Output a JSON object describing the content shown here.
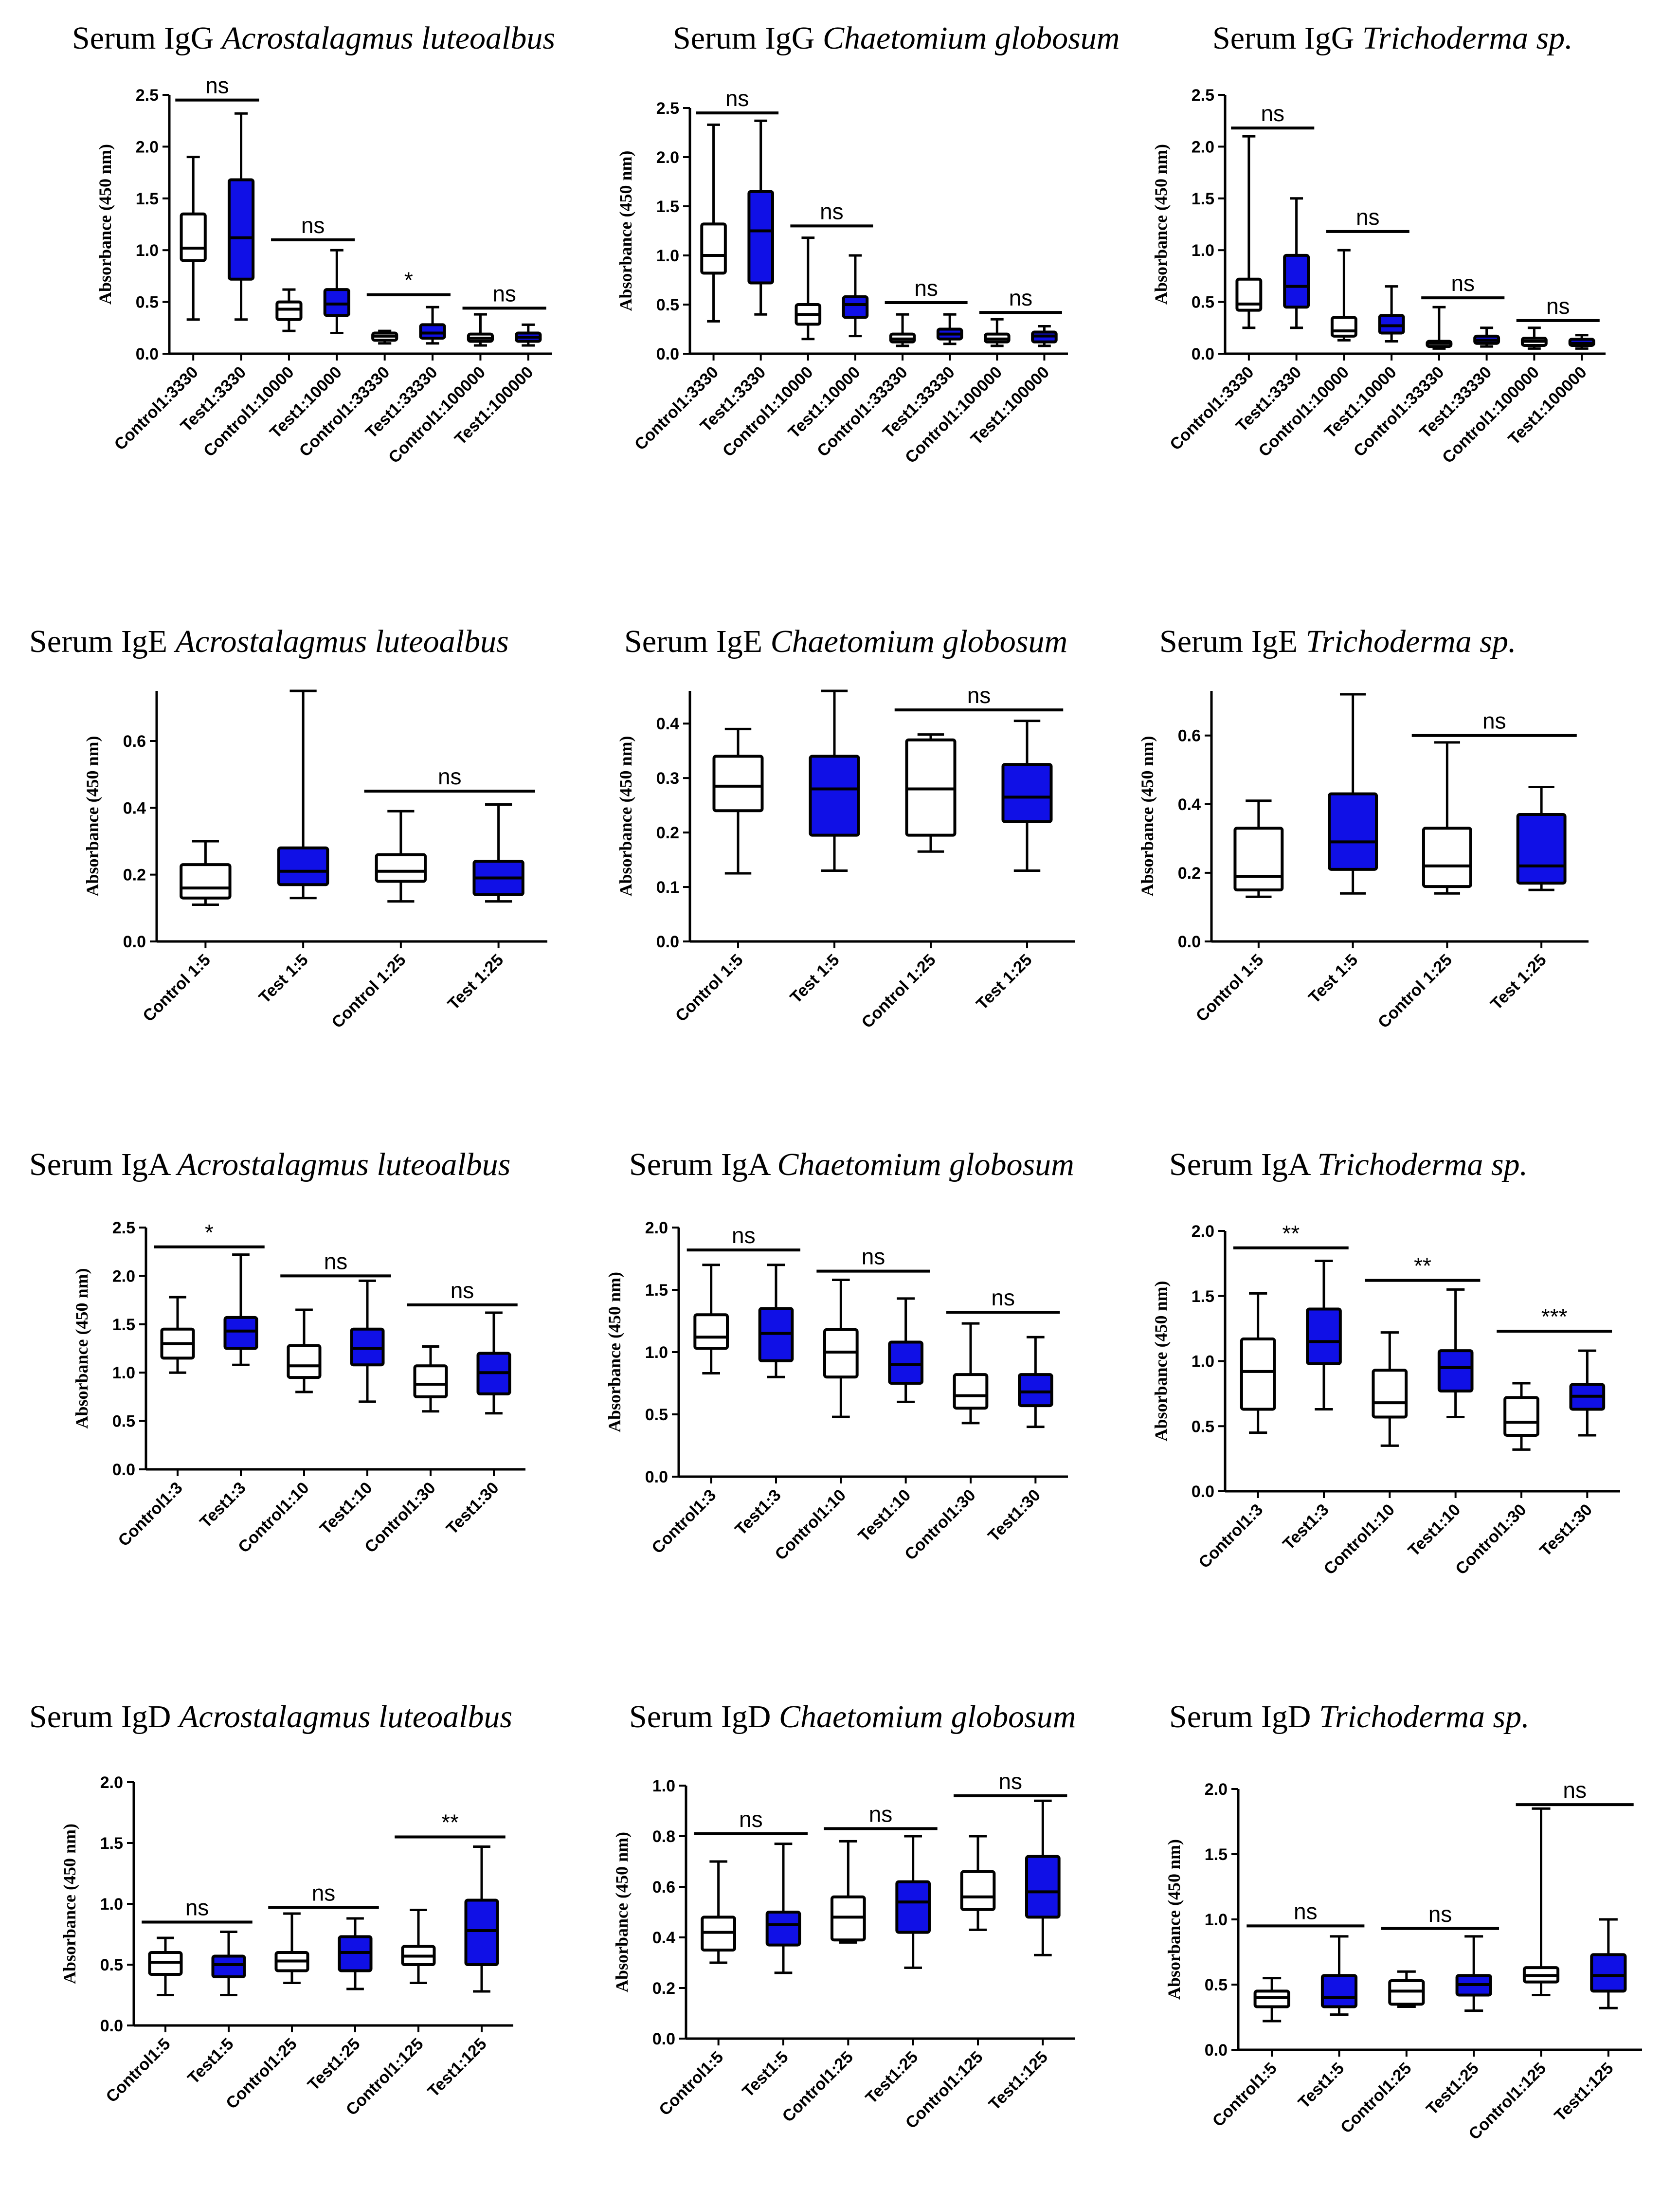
{
  "figure": {
    "test_color": "#1010e6",
    "control_color": "#ffffff",
    "line_color": "#000000"
  },
  "chart_data": [
    {
      "type": "box",
      "title_prefix": "Serum IgG",
      "title_species": "Acrostalagmus luteoalbus",
      "ylabel": "Absorbance (450 nm)",
      "ylim": [
        0,
        2.5
      ],
      "yticks": [
        "0.0",
        "0.5",
        "1.0",
        "1.5",
        "2.0",
        "2.5"
      ],
      "categories": [
        "Control1:3330",
        "Test1:3330",
        "Control1:10000",
        "Test1:10000",
        "Control1:33330",
        "Test1:33330",
        "Control1:100000",
        "Test1:100000"
      ],
      "groups": [
        "control",
        "test",
        "control",
        "test",
        "control",
        "test",
        "control",
        "test"
      ],
      "boxes": [
        [
          0.33,
          0.9,
          1.02,
          1.35,
          1.9
        ],
        [
          0.33,
          0.72,
          1.12,
          1.68,
          2.32
        ],
        [
          0.22,
          0.33,
          0.43,
          0.5,
          0.62
        ],
        [
          0.2,
          0.37,
          0.48,
          0.62,
          1.0
        ],
        [
          0.1,
          0.13,
          0.17,
          0.2,
          0.22
        ],
        [
          0.1,
          0.15,
          0.2,
          0.28,
          0.45
        ],
        [
          0.08,
          0.12,
          0.15,
          0.19,
          0.38
        ],
        [
          0.08,
          0.12,
          0.16,
          0.2,
          0.28
        ]
      ],
      "annotations": [
        {
          "label": "ns",
          "from": 0,
          "to": 1,
          "y": 2.45
        },
        {
          "label": "ns",
          "from": 2,
          "to": 3,
          "y": 1.1
        },
        {
          "label": "*",
          "from": 4,
          "to": 5,
          "y": 0.57
        },
        {
          "label": "ns",
          "from": 6,
          "to": 7,
          "y": 0.44
        }
      ]
    },
    {
      "type": "box",
      "title_prefix": "Serum IgG",
      "title_species": "Chaetomium globosum",
      "ylabel": "Absorbance (450 nm)",
      "ylim": [
        0,
        2.5
      ],
      "yticks": [
        "0.0",
        "0.5",
        "1.0",
        "1.5",
        "2.0",
        "2.5"
      ],
      "categories": [
        "Control1:3330",
        "Test1:3330",
        "Control1:10000",
        "Test1:10000",
        "Control1:33330",
        "Test1:33330",
        "Control1:100000",
        "Test1:100000"
      ],
      "groups": [
        "control",
        "test",
        "control",
        "test",
        "control",
        "test",
        "control",
        "test"
      ],
      "boxes": [
        [
          0.33,
          0.82,
          1.0,
          1.32,
          2.33
        ],
        [
          0.4,
          0.72,
          1.25,
          1.65,
          2.37
        ],
        [
          0.15,
          0.3,
          0.4,
          0.5,
          1.18
        ],
        [
          0.18,
          0.37,
          0.5,
          0.58,
          1.0
        ],
        [
          0.08,
          0.12,
          0.15,
          0.2,
          0.4
        ],
        [
          0.1,
          0.15,
          0.2,
          0.25,
          0.4
        ],
        [
          0.08,
          0.12,
          0.15,
          0.2,
          0.35
        ],
        [
          0.08,
          0.12,
          0.18,
          0.22,
          0.28
        ]
      ],
      "annotations": [
        {
          "label": "ns",
          "from": 0,
          "to": 1,
          "y": 2.45
        },
        {
          "label": "ns",
          "from": 2,
          "to": 3,
          "y": 1.3
        },
        {
          "label": "ns",
          "from": 4,
          "to": 5,
          "y": 0.52
        },
        {
          "label": "ns",
          "from": 6,
          "to": 7,
          "y": 0.42
        }
      ]
    },
    {
      "type": "box",
      "title_prefix": "Serum IgG",
      "title_species": "Trichoderma sp.",
      "ylabel": "Absorbance (450 nm)",
      "ylim": [
        0,
        2.5
      ],
      "yticks": [
        "0.0",
        "0.5",
        "1.0",
        "1.5",
        "2.0",
        "2.5"
      ],
      "categories": [
        "Control1:3330",
        "Test1:3330",
        "Control1:10000",
        "Test1:10000",
        "Control1:33330",
        "Test1:33330",
        "Control1:100000",
        "Test1:100000"
      ],
      "groups": [
        "control",
        "test",
        "control",
        "test",
        "control",
        "test",
        "control",
        "test"
      ],
      "boxes": [
        [
          0.25,
          0.42,
          0.48,
          0.72,
          2.1
        ],
        [
          0.25,
          0.45,
          0.65,
          0.95,
          1.5
        ],
        [
          0.13,
          0.17,
          0.22,
          0.35,
          1.0
        ],
        [
          0.12,
          0.2,
          0.27,
          0.37,
          0.65
        ],
        [
          0.05,
          0.07,
          0.1,
          0.12,
          0.45
        ],
        [
          0.07,
          0.1,
          0.13,
          0.17,
          0.25
        ],
        [
          0.05,
          0.08,
          0.12,
          0.15,
          0.25
        ],
        [
          0.05,
          0.08,
          0.1,
          0.14,
          0.18
        ]
      ],
      "annotations": [
        {
          "label": "ns",
          "from": 0,
          "to": 1,
          "y": 2.18
        },
        {
          "label": "ns",
          "from": 2,
          "to": 3,
          "y": 1.18
        },
        {
          "label": "ns",
          "from": 4,
          "to": 5,
          "y": 0.54
        },
        {
          "label": "ns",
          "from": 6,
          "to": 7,
          "y": 0.32
        }
      ]
    },
    {
      "type": "box",
      "title_prefix": "Serum IgE",
      "title_species": "Acrostalagmus luteoalbus",
      "ylabel": "Absorbance (450 nm)",
      "ylim": [
        0,
        0.75
      ],
      "yticks": [
        "0.0",
        "0.2",
        "0.4",
        "0.6"
      ],
      "categories": [
        "Control 1:5",
        "Test 1:5",
        "Control 1:25",
        "Test 1:25"
      ],
      "groups": [
        "control",
        "test",
        "control",
        "test"
      ],
      "boxes": [
        [
          0.11,
          0.13,
          0.16,
          0.23,
          0.3
        ],
        [
          0.13,
          0.17,
          0.21,
          0.28,
          0.75
        ],
        [
          0.12,
          0.18,
          0.21,
          0.26,
          0.39
        ],
        [
          0.12,
          0.14,
          0.19,
          0.24,
          0.41
        ]
      ],
      "annotations": [
        {
          "label": "ns",
          "from": 2,
          "to": 3,
          "y": 0.45
        }
      ]
    },
    {
      "type": "box",
      "title_prefix": "Serum IgE",
      "title_species": "Chaetomium globosum",
      "ylabel": "Absorbance (450 nm)",
      "ylim": [
        0,
        0.46
      ],
      "yticks": [
        "0.0",
        "0.1",
        "0.2",
        "0.3",
        "0.4"
      ],
      "categories": [
        "Control 1:5",
        "Test 1:5",
        "Control 1:25",
        "Test 1:25"
      ],
      "groups": [
        "control",
        "test",
        "control",
        "test"
      ],
      "boxes": [
        [
          0.125,
          0.24,
          0.285,
          0.34,
          0.39
        ],
        [
          0.13,
          0.195,
          0.28,
          0.34,
          0.46
        ],
        [
          0.165,
          0.195,
          0.28,
          0.37,
          0.38
        ],
        [
          0.13,
          0.22,
          0.265,
          0.325,
          0.405
        ]
      ],
      "annotations": [
        {
          "label": "ns",
          "from": 2,
          "to": 3,
          "y": 0.425
        }
      ]
    },
    {
      "type": "box",
      "title_prefix": "Serum IgE",
      "title_species": "Trichoderma sp.",
      "ylabel": "Absorbance (450 nm)",
      "ylim": [
        0,
        0.73
      ],
      "yticks": [
        "0.0",
        "0.2",
        "0.4",
        "0.6"
      ],
      "categories": [
        "Control 1:5",
        "Test 1:5",
        "Control 1:25",
        "Test 1:25"
      ],
      "groups": [
        "control",
        "test",
        "control",
        "test"
      ],
      "boxes": [
        [
          0.13,
          0.15,
          0.19,
          0.33,
          0.41
        ],
        [
          0.14,
          0.21,
          0.29,
          0.43,
          0.72
        ],
        [
          0.14,
          0.16,
          0.22,
          0.33,
          0.58
        ],
        [
          0.15,
          0.17,
          0.22,
          0.37,
          0.45
        ]
      ],
      "annotations": [
        {
          "label": "ns",
          "from": 2,
          "to": 3,
          "y": 0.6
        }
      ]
    },
    {
      "type": "box",
      "title_prefix": "Serum IgA",
      "title_species": "Acrostalagmus luteoalbus",
      "ylabel": "Absorbance (450 nm)",
      "ylim": [
        0,
        2.5
      ],
      "yticks": [
        "0.0",
        "0.5",
        "1.0",
        "1.5",
        "2.0",
        "2.5"
      ],
      "categories": [
        "Control1:3",
        "Test1:3",
        "Control1:10",
        "Test1:10",
        "Control1:30",
        "Test1:30"
      ],
      "groups": [
        "control",
        "test",
        "control",
        "test",
        "control",
        "test"
      ],
      "boxes": [
        [
          1.0,
          1.15,
          1.3,
          1.45,
          1.78
        ],
        [
          1.08,
          1.25,
          1.43,
          1.57,
          2.22
        ],
        [
          0.8,
          0.95,
          1.07,
          1.28,
          1.65
        ],
        [
          0.7,
          1.08,
          1.25,
          1.45,
          1.95
        ],
        [
          0.6,
          0.75,
          0.88,
          1.07,
          1.27
        ],
        [
          0.58,
          0.78,
          1.0,
          1.2,
          1.62
        ]
      ],
      "annotations": [
        {
          "label": "*",
          "from": 0,
          "to": 1,
          "y": 2.3
        },
        {
          "label": "ns",
          "from": 2,
          "to": 3,
          "y": 2.0
        },
        {
          "label": "ns",
          "from": 4,
          "to": 5,
          "y": 1.7
        }
      ]
    },
    {
      "type": "box",
      "title_prefix": "Serum IgA",
      "title_species": "Chaetomium globosum",
      "ylabel": "Absorbance (450 nm)",
      "ylim": [
        0,
        2.0
      ],
      "yticks": [
        "0.0",
        "0.5",
        "1.0",
        "1.5",
        "2.0"
      ],
      "categories": [
        "Control1:3",
        "Test1:3",
        "Control1:10",
        "Test1:10",
        "Control1:30",
        "Test1:30"
      ],
      "groups": [
        "control",
        "test",
        "control",
        "test",
        "control",
        "test"
      ],
      "boxes": [
        [
          0.83,
          1.03,
          1.12,
          1.3,
          1.7
        ],
        [
          0.8,
          0.93,
          1.15,
          1.35,
          1.7
        ],
        [
          0.48,
          0.8,
          1.0,
          1.18,
          1.58
        ],
        [
          0.6,
          0.75,
          0.9,
          1.08,
          1.43
        ],
        [
          0.43,
          0.55,
          0.65,
          0.82,
          1.23
        ],
        [
          0.4,
          0.57,
          0.68,
          0.82,
          1.12
        ]
      ],
      "annotations": [
        {
          "label": "ns",
          "from": 0,
          "to": 1,
          "y": 1.82
        },
        {
          "label": "ns",
          "from": 2,
          "to": 3,
          "y": 1.65
        },
        {
          "label": "ns",
          "from": 4,
          "to": 5,
          "y": 1.32
        }
      ]
    },
    {
      "type": "box",
      "title_prefix": "Serum IgA",
      "title_species": "Trichoderma sp.",
      "ylabel": "Absorbance (450 nm)",
      "ylim": [
        0,
        2.0
      ],
      "yticks": [
        "0.0",
        "0.5",
        "1.0",
        "1.5",
        "2.0"
      ],
      "categories": [
        "Control1:3",
        "Test1:3",
        "Control1:10",
        "Test1:10",
        "Control1:30",
        "Test1:30"
      ],
      "groups": [
        "control",
        "test",
        "control",
        "test",
        "control",
        "test"
      ],
      "boxes": [
        [
          0.45,
          0.63,
          0.92,
          1.17,
          1.52
        ],
        [
          0.63,
          0.98,
          1.15,
          1.4,
          1.77
        ],
        [
          0.35,
          0.57,
          0.68,
          0.93,
          1.22
        ],
        [
          0.57,
          0.77,
          0.95,
          1.08,
          1.55
        ],
        [
          0.32,
          0.43,
          0.53,
          0.72,
          0.83
        ],
        [
          0.43,
          0.63,
          0.73,
          0.82,
          1.08
        ]
      ],
      "annotations": [
        {
          "label": "**",
          "from": 0,
          "to": 1,
          "y": 1.87
        },
        {
          "label": "**",
          "from": 2,
          "to": 3,
          "y": 1.62
        },
        {
          "label": "***",
          "from": 4,
          "to": 5,
          "y": 1.23
        }
      ]
    },
    {
      "type": "box",
      "title_prefix": "Serum IgD",
      "title_species": "Acrostalagmus luteoalbus",
      "ylabel": "Absorbance (450 nm)",
      "ylim": [
        0,
        2.0
      ],
      "yticks": [
        "0.0",
        "0.5",
        "1.0",
        "1.5",
        "2.0"
      ],
      "categories": [
        "Control1:5",
        "Test1:5",
        "Control1:25",
        "Test1:25",
        "Control1:125",
        "Test1:125"
      ],
      "groups": [
        "control",
        "test",
        "control",
        "test",
        "control",
        "test"
      ],
      "boxes": [
        [
          0.25,
          0.42,
          0.52,
          0.6,
          0.72
        ],
        [
          0.25,
          0.4,
          0.5,
          0.57,
          0.77
        ],
        [
          0.35,
          0.45,
          0.53,
          0.6,
          0.92
        ],
        [
          0.3,
          0.45,
          0.6,
          0.73,
          0.88
        ],
        [
          0.35,
          0.5,
          0.57,
          0.65,
          0.95
        ],
        [
          0.28,
          0.5,
          0.78,
          1.03,
          1.47
        ]
      ],
      "annotations": [
        {
          "label": "ns",
          "from": 0,
          "to": 1,
          "y": 0.85
        },
        {
          "label": "ns",
          "from": 2,
          "to": 3,
          "y": 0.97
        },
        {
          "label": "**",
          "from": 4,
          "to": 5,
          "y": 1.55
        }
      ]
    },
    {
      "type": "box",
      "title_prefix": "Serum IgD",
      "title_species": "Chaetomium globosum",
      "ylabel": "Absorbance (450 nm)",
      "ylim": [
        0,
        1.0
      ],
      "yticks": [
        "0.0",
        "0.2",
        "0.4",
        "0.6",
        "0.8",
        "1.0"
      ],
      "categories": [
        "Control1:5",
        "Test1:5",
        "Control1:25",
        "Test1:25",
        "Control1:125",
        "Test1:125"
      ],
      "groups": [
        "control",
        "test",
        "control",
        "test",
        "control",
        "test"
      ],
      "boxes": [
        [
          0.3,
          0.35,
          0.42,
          0.48,
          0.7
        ],
        [
          0.26,
          0.37,
          0.45,
          0.5,
          0.77
        ],
        [
          0.38,
          0.39,
          0.48,
          0.56,
          0.78
        ],
        [
          0.28,
          0.42,
          0.54,
          0.62,
          0.8
        ],
        [
          0.43,
          0.51,
          0.56,
          0.66,
          0.8
        ],
        [
          0.33,
          0.48,
          0.58,
          0.72,
          0.94
        ]
      ],
      "annotations": [
        {
          "label": "ns",
          "from": 0,
          "to": 1,
          "y": 0.81
        },
        {
          "label": "ns",
          "from": 2,
          "to": 3,
          "y": 0.83
        },
        {
          "label": "ns",
          "from": 4,
          "to": 5,
          "y": 0.96
        }
      ]
    },
    {
      "type": "box",
      "title_prefix": "Serum IgD",
      "title_species": "Trichoderma sp.",
      "ylabel": "Absorbance (450 nm)",
      "ylim": [
        0,
        2.0
      ],
      "yticks": [
        "0.0",
        "0.5",
        "1.0",
        "1.5",
        "2.0"
      ],
      "categories": [
        "Control1:5",
        "Test1:5",
        "Control1:25",
        "Test1:25",
        "Control1:125",
        "Test1:125"
      ],
      "groups": [
        "control",
        "test",
        "control",
        "test",
        "control",
        "test"
      ],
      "boxes": [
        [
          0.22,
          0.33,
          0.4,
          0.45,
          0.55
        ],
        [
          0.27,
          0.33,
          0.4,
          0.57,
          0.87
        ],
        [
          0.33,
          0.35,
          0.45,
          0.53,
          0.6
        ],
        [
          0.3,
          0.42,
          0.5,
          0.57,
          0.87
        ],
        [
          0.42,
          0.52,
          0.57,
          0.63,
          1.85
        ],
        [
          0.32,
          0.45,
          0.57,
          0.73,
          1.0
        ]
      ],
      "annotations": [
        {
          "label": "ns",
          "from": 0,
          "to": 1,
          "y": 0.95
        },
        {
          "label": "ns",
          "from": 2,
          "to": 3,
          "y": 0.93
        },
        {
          "label": "ns",
          "from": 4,
          "to": 5,
          "y": 1.88
        }
      ]
    }
  ]
}
